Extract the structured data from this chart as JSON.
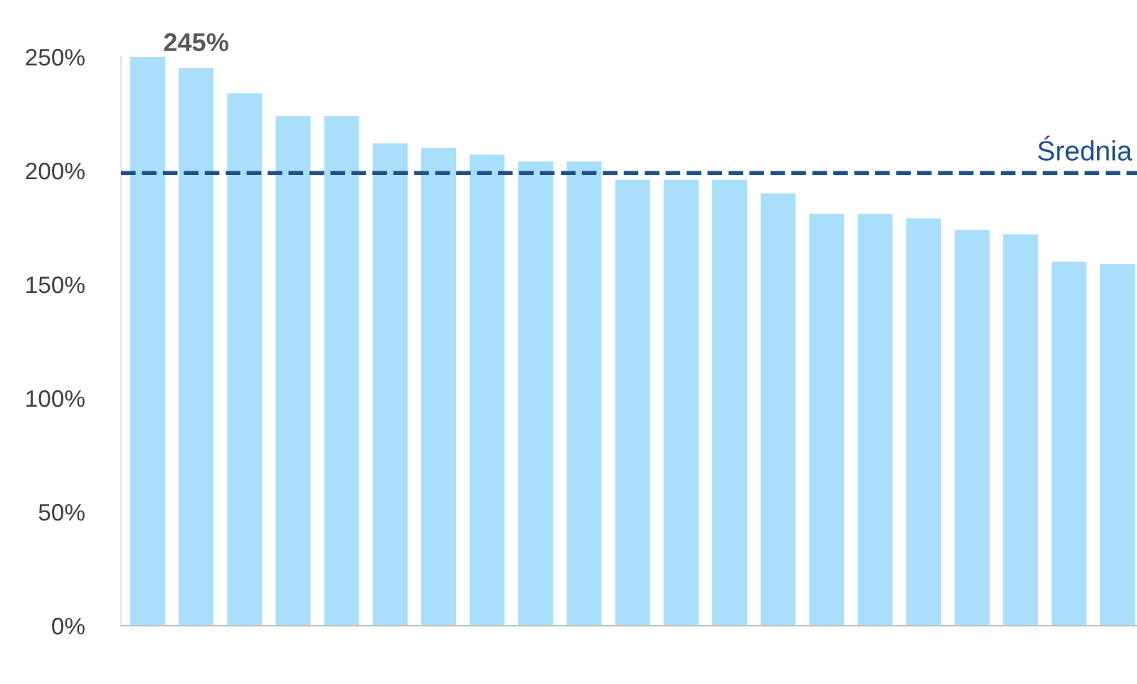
{
  "chart_data": {
    "type": "bar",
    "categories": [
      null,
      null,
      null,
      null,
      null,
      null,
      null,
      null,
      null,
      null,
      null,
      null,
      null,
      null,
      null,
      null,
      null,
      null,
      null,
      null,
      null
    ],
    "values": [
      250,
      245,
      234,
      224,
      224,
      212,
      210,
      207,
      204,
      204,
      196,
      196,
      196,
      190,
      181,
      181,
      179,
      174,
      172,
      160,
      159
    ],
    "value_labels": [
      null,
      "245%",
      null,
      null,
      null,
      null,
      null,
      null,
      null,
      null,
      null,
      null,
      null,
      null,
      null,
      null,
      null,
      null,
      null,
      null,
      null
    ],
    "color": "#a9dffb",
    "ylim": [
      0,
      250
    ],
    "yticks": [
      {
        "value": 0,
        "label": "0%"
      },
      {
        "value": 50,
        "label": "50%"
      },
      {
        "value": 100,
        "label": "100%"
      },
      {
        "value": 150,
        "label": "150%"
      },
      {
        "value": 200,
        "label": "200%"
      },
      {
        "value": 250,
        "label": "250%"
      }
    ],
    "ref_lines": [
      {
        "axis": "y",
        "value": 199,
        "label": "Średnia",
        "color": "#1f4e8c",
        "line_style": "dashed"
      }
    ],
    "grid": false,
    "legend": false
  }
}
